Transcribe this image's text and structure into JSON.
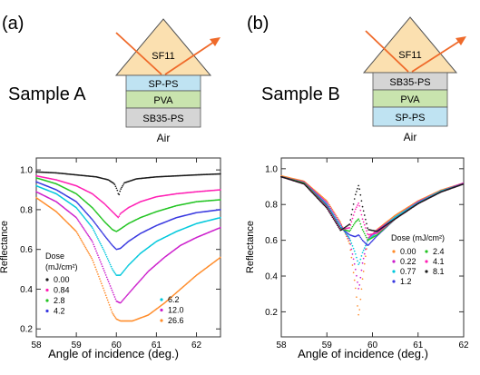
{
  "panels": {
    "a": {
      "letter": "(a)",
      "sample_label": "Sample A",
      "prism_label": "SF11",
      "layers": [
        {
          "label": "SP-PS",
          "color": "#bfe3f2"
        },
        {
          "label": "PVA",
          "color": "#c9e4ae"
        },
        {
          "label": "SB35-PS",
          "color": "#d5d5d5"
        }
      ],
      "ambient_label": "Air"
    },
    "b": {
      "letter": "(b)",
      "sample_label": "Sample B",
      "prism_label": "SF11",
      "layers": [
        {
          "label": "SB35-PS",
          "color": "#d5d5d5"
        },
        {
          "label": "PVA",
          "color": "#c9e4ae"
        },
        {
          "label": "SP-PS",
          "color": "#bfe3f2"
        }
      ],
      "ambient_label": "Air"
    }
  },
  "colors": {
    "prism_fill": "#fbe0b0",
    "ray": "#ef6a2a"
  },
  "chart_data": [
    {
      "type": "scatter",
      "panel": "a",
      "xlabel": "Angle of incidence (deg.)",
      "ylabel": "Reflectance",
      "xlim": [
        58,
        62.6
      ],
      "ylim": [
        0.16,
        1.06
      ],
      "xticks": [
        58,
        59,
        60,
        61,
        62
      ],
      "yticks": [
        0.2,
        0.4,
        0.6,
        0.8,
        1.0
      ],
      "legend_title": "Dose",
      "legend_unit": "(mJ/cm²)",
      "legend_position": "bottom-left and bottom-right",
      "series": [
        {
          "name": "0.00",
          "color": "#1a1a1a",
          "points": [
            [
              58,
              0.99
            ],
            [
              58.5,
              0.985
            ],
            [
              59,
              0.975
            ],
            [
              59.5,
              0.965
            ],
            [
              59.8,
              0.95
            ],
            [
              59.95,
              0.93
            ],
            [
              60.02,
              0.9
            ],
            [
              60.06,
              0.87
            ],
            [
              60.1,
              0.9
            ],
            [
              60.2,
              0.935
            ],
            [
              60.5,
              0.955
            ],
            [
              61,
              0.965
            ],
            [
              61.5,
              0.97
            ],
            [
              62,
              0.975
            ],
            [
              62.6,
              0.98
            ]
          ]
        },
        {
          "name": "0.84",
          "color": "#ff1fb4",
          "points": [
            [
              58,
              0.97
            ],
            [
              58.5,
              0.95
            ],
            [
              59,
              0.92
            ],
            [
              59.4,
              0.88
            ],
            [
              59.7,
              0.83
            ],
            [
              59.9,
              0.79
            ],
            [
              60.0,
              0.77
            ],
            [
              60.05,
              0.76
            ],
            [
              60.1,
              0.78
            ],
            [
              60.3,
              0.81
            ],
            [
              60.6,
              0.84
            ],
            [
              61,
              0.865
            ],
            [
              61.5,
              0.88
            ],
            [
              62,
              0.89
            ],
            [
              62.6,
              0.9
            ]
          ]
        },
        {
          "name": "2.8",
          "color": "#22c422",
          "points": [
            [
              58,
              0.96
            ],
            [
              58.5,
              0.93
            ],
            [
              59,
              0.88
            ],
            [
              59.4,
              0.81
            ],
            [
              59.7,
              0.74
            ],
            [
              59.9,
              0.7
            ],
            [
              60.0,
              0.69
            ],
            [
              60.08,
              0.7
            ],
            [
              60.3,
              0.73
            ],
            [
              60.6,
              0.76
            ],
            [
              61,
              0.79
            ],
            [
              61.5,
              0.82
            ],
            [
              62,
              0.84
            ],
            [
              62.6,
              0.85
            ]
          ]
        },
        {
          "name": "4.2",
          "color": "#3838e0",
          "points": [
            [
              58,
              0.94
            ],
            [
              58.5,
              0.9
            ],
            [
              59,
              0.84
            ],
            [
              59.4,
              0.75
            ],
            [
              59.7,
              0.67
            ],
            [
              59.9,
              0.62
            ],
            [
              60.0,
              0.6
            ],
            [
              60.1,
              0.605
            ],
            [
              60.3,
              0.64
            ],
            [
              60.6,
              0.68
            ],
            [
              61,
              0.72
            ],
            [
              61.5,
              0.76
            ],
            [
              62,
              0.785
            ],
            [
              62.6,
              0.8
            ]
          ]
        },
        {
          "name": "6.2",
          "color": "#00c8dc",
          "points": [
            [
              58,
              0.92
            ],
            [
              58.5,
              0.88
            ],
            [
              59,
              0.81
            ],
            [
              59.4,
              0.71
            ],
            [
              59.7,
              0.59
            ],
            [
              59.9,
              0.5
            ],
            [
              60.0,
              0.47
            ],
            [
              60.1,
              0.47
            ],
            [
              60.3,
              0.52
            ],
            [
              60.6,
              0.58
            ],
            [
              61,
              0.64
            ],
            [
              61.5,
              0.69
            ],
            [
              62,
              0.73
            ],
            [
              62.6,
              0.76
            ]
          ]
        },
        {
          "name": "12.0",
          "color": "#cc1ecc",
          "points": [
            [
              58,
              0.89
            ],
            [
              58.5,
              0.84
            ],
            [
              59,
              0.76
            ],
            [
              59.4,
              0.64
            ],
            [
              59.7,
              0.49
            ],
            [
              59.9,
              0.39
            ],
            [
              60.0,
              0.34
            ],
            [
              60.1,
              0.33
            ],
            [
              60.4,
              0.4
            ],
            [
              60.8,
              0.49
            ],
            [
              61.2,
              0.56
            ],
            [
              61.6,
              0.62
            ],
            [
              62,
              0.66
            ],
            [
              62.6,
              0.71
            ]
          ]
        },
        {
          "name": "26.6",
          "color": "#ff8c2a",
          "points": [
            [
              58,
              0.86
            ],
            [
              58.5,
              0.79
            ],
            [
              59,
              0.69
            ],
            [
              59.4,
              0.55
            ],
            [
              59.7,
              0.39
            ],
            [
              59.9,
              0.28
            ],
            [
              60.0,
              0.25
            ],
            [
              60.1,
              0.24
            ],
            [
              60.4,
              0.24
            ],
            [
              60.8,
              0.27
            ],
            [
              61.2,
              0.33
            ],
            [
              61.6,
              0.4
            ],
            [
              62,
              0.47
            ],
            [
              62.6,
              0.56
            ]
          ]
        }
      ]
    },
    {
      "type": "scatter",
      "panel": "b",
      "xlabel": "Angle of incidence (deg.)",
      "ylabel": "Reflectance",
      "xlim": [
        58,
        62
      ],
      "ylim": [
        0.06,
        1.06
      ],
      "xticks": [
        58,
        59,
        60,
        61,
        62
      ],
      "yticks": [
        0.2,
        0.4,
        0.6,
        0.8,
        1.0
      ],
      "legend_title": "Dose (mJ/cm²)",
      "legend_position": "right",
      "series": [
        {
          "name": "0.00",
          "color": "#ff8c2a",
          "points": [
            [
              58,
              0.96
            ],
            [
              58.5,
              0.93
            ],
            [
              59,
              0.82
            ],
            [
              59.3,
              0.7
            ],
            [
              59.5,
              0.58
            ],
            [
              59.62,
              0.35
            ],
            [
              59.7,
              0.17
            ],
            [
              59.78,
              0.38
            ],
            [
              59.9,
              0.61
            ],
            [
              60.1,
              0.66
            ],
            [
              60.5,
              0.74
            ],
            [
              61,
              0.82
            ],
            [
              61.5,
              0.88
            ],
            [
              62,
              0.92
            ]
          ]
        },
        {
          "name": "0.22",
          "color": "#cc1ecc",
          "points": [
            [
              58,
              0.955
            ],
            [
              58.5,
              0.925
            ],
            [
              59,
              0.81
            ],
            [
              59.3,
              0.69
            ],
            [
              59.5,
              0.6
            ],
            [
              59.62,
              0.45
            ],
            [
              59.7,
              0.32
            ],
            [
              59.78,
              0.47
            ],
            [
              59.9,
              0.61
            ],
            [
              60.1,
              0.655
            ],
            [
              60.5,
              0.73
            ],
            [
              61,
              0.815
            ],
            [
              61.5,
              0.875
            ],
            [
              62,
              0.92
            ]
          ]
        },
        {
          "name": "0.77",
          "color": "#00c8dc",
          "points": [
            [
              58,
              0.955
            ],
            [
              58.5,
              0.92
            ],
            [
              59,
              0.8
            ],
            [
              59.3,
              0.68
            ],
            [
              59.5,
              0.61
            ],
            [
              59.62,
              0.53
            ],
            [
              59.7,
              0.46
            ],
            [
              59.78,
              0.53
            ],
            [
              59.9,
              0.6
            ],
            [
              60.1,
              0.645
            ],
            [
              60.5,
              0.73
            ],
            [
              61,
              0.81
            ],
            [
              61.5,
              0.875
            ],
            [
              62,
              0.915
            ]
          ]
        },
        {
          "name": "1.2",
          "color": "#3838e0",
          "points": [
            [
              58,
              0.955
            ],
            [
              58.5,
              0.92
            ],
            [
              59,
              0.795
            ],
            [
              59.3,
              0.67
            ],
            [
              59.5,
              0.63
            ],
            [
              59.62,
              0.62
            ],
            [
              59.7,
              0.63
            ],
            [
              59.78,
              0.6
            ],
            [
              59.9,
              0.57
            ],
            [
              60.1,
              0.625
            ],
            [
              60.5,
              0.72
            ],
            [
              61,
              0.805
            ],
            [
              61.5,
              0.87
            ],
            [
              62,
              0.915
            ]
          ]
        },
        {
          "name": "2.4",
          "color": "#22c422",
          "points": [
            [
              58,
              0.955
            ],
            [
              58.5,
              0.92
            ],
            [
              59,
              0.79
            ],
            [
              59.3,
              0.665
            ],
            [
              59.5,
              0.65
            ],
            [
              59.62,
              0.7
            ],
            [
              59.7,
              0.72
            ],
            [
              59.78,
              0.66
            ],
            [
              59.9,
              0.6
            ],
            [
              60.1,
              0.63
            ],
            [
              60.5,
              0.72
            ],
            [
              61,
              0.805
            ],
            [
              61.5,
              0.87
            ],
            [
              62,
              0.915
            ]
          ]
        },
        {
          "name": "4.1",
          "color": "#ff1fb4",
          "points": [
            [
              58,
              0.955
            ],
            [
              58.5,
              0.915
            ],
            [
              59,
              0.785
            ],
            [
              59.3,
              0.66
            ],
            [
              59.5,
              0.67
            ],
            [
              59.62,
              0.77
            ],
            [
              59.7,
              0.81
            ],
            [
              59.78,
              0.72
            ],
            [
              59.9,
              0.63
            ],
            [
              60.1,
              0.64
            ],
            [
              60.5,
              0.72
            ],
            [
              61,
              0.805
            ],
            [
              61.5,
              0.87
            ],
            [
              62,
              0.915
            ]
          ]
        },
        {
          "name": "8.1",
          "color": "#1a1a1a",
          "points": [
            [
              58,
              0.955
            ],
            [
              58.5,
              0.915
            ],
            [
              59,
              0.78
            ],
            [
              59.3,
              0.655
            ],
            [
              59.5,
              0.69
            ],
            [
              59.62,
              0.85
            ],
            [
              59.7,
              0.91
            ],
            [
              59.78,
              0.79
            ],
            [
              59.9,
              0.66
            ],
            [
              60.1,
              0.65
            ],
            [
              60.5,
              0.72
            ],
            [
              61,
              0.805
            ],
            [
              61.5,
              0.87
            ],
            [
              62,
              0.915
            ]
          ]
        }
      ]
    }
  ]
}
